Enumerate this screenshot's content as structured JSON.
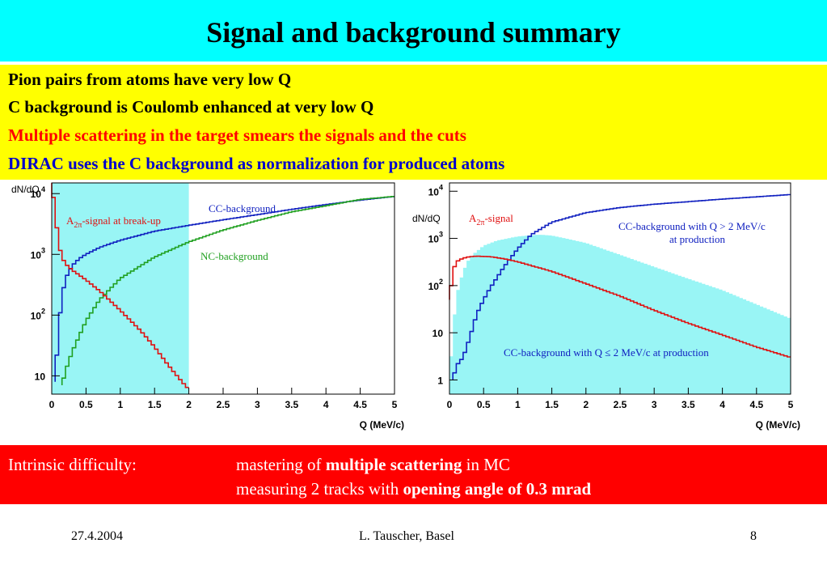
{
  "title": "Signal and background summary",
  "bullets": [
    {
      "text": "Pion pairs from atoms have very low Q",
      "color": "#000000"
    },
    {
      "text": "C background is Coulomb enhanced at very low Q",
      "color": "#000000"
    },
    {
      "text": "Multiple scattering in the target smears the signals and the cuts",
      "color": "#ff0000"
    },
    {
      "text": "DIRAC uses the C background as normalization for produced atoms",
      "color": "#0000cc"
    }
  ],
  "chart_data": [
    {
      "type": "line",
      "ylabel": "dN/dQ",
      "xlabel": "Q (MeV/c)",
      "y_scale": "log",
      "xlim": [
        0,
        5
      ],
      "ylim": [
        5,
        15000
      ],
      "x_ticks": [
        "0",
        "0.5",
        "1",
        "1.5",
        "2",
        "2.5",
        "3",
        "3.5",
        "4",
        "4.5",
        "5"
      ],
      "y_ticks": [
        {
          "base": "10",
          "exp": "",
          "value": 10
        },
        {
          "base": "10",
          "exp": "2",
          "value": 100
        },
        {
          "base": "10",
          "exp": "3",
          "value": 1000
        },
        {
          "base": "10",
          "exp": "4",
          "value": 10000
        }
      ],
      "shaded_region": {
        "x": [
          0,
          2
        ],
        "color": "#99f5f5",
        "description": "signal region"
      },
      "series": [
        {
          "name": "CC-background",
          "color": "#1020c0",
          "x": [
            0.05,
            0.1,
            0.15,
            0.2,
            0.3,
            0.4,
            0.5,
            0.7,
            1.0,
            1.5,
            2.0,
            2.5,
            3.0,
            3.5,
            4.0,
            4.5,
            5.0
          ],
          "y": [
            8,
            60,
            200,
            400,
            650,
            850,
            1000,
            1300,
            1700,
            2400,
            3000,
            3700,
            4500,
            5500,
            6600,
            7800,
            9000
          ]
        },
        {
          "name": "NC-background",
          "color": "#20a020",
          "x": [
            0.15,
            0.2,
            0.3,
            0.4,
            0.5,
            0.7,
            1.0,
            1.5,
            2.0,
            2.5,
            3.0,
            3.5,
            4.0,
            4.5,
            5.0
          ],
          "y": [
            7,
            12,
            25,
            45,
            80,
            180,
            400,
            900,
            1600,
            2500,
            3600,
            5000,
            6300,
            8000,
            9000
          ]
        },
        {
          "name": "A_2π-signal at break-up",
          "color": "#e01010",
          "x": [
            0.0,
            0.05,
            0.1,
            0.15,
            0.2,
            0.3,
            0.5,
            0.7,
            1.0,
            1.3,
            1.5,
            1.7,
            1.9,
            2.0
          ],
          "y": [
            15000,
            5000,
            1500,
            900,
            700,
            550,
            380,
            250,
            120,
            55,
            30,
            15,
            8,
            6
          ]
        }
      ],
      "labels": [
        {
          "text": "CC-background",
          "color": "#1020c0"
        },
        {
          "text": "NC-background",
          "color": "#20a020"
        },
        {
          "base": "A",
          "sub": "2π",
          "rest": "-signal at break-up",
          "color": "#e01010"
        }
      ]
    },
    {
      "type": "line",
      "ylabel": "dN/dQ",
      "xlabel": "Q (MeV/c)",
      "y_scale": "log",
      "xlim": [
        0,
        5
      ],
      "ylim": [
        0.5,
        15000
      ],
      "x_ticks": [
        "0",
        "0.5",
        "1",
        "1.5",
        "2",
        "2.5",
        "3",
        "3.5",
        "4",
        "4.5",
        "5"
      ],
      "y_ticks": [
        {
          "base": "1",
          "exp": "",
          "value": 1
        },
        {
          "base": "10",
          "exp": "",
          "value": 10
        },
        {
          "base": "10",
          "exp": "2",
          "value": 100
        },
        {
          "base": "10",
          "exp": "3",
          "value": 1000
        },
        {
          "base": "10",
          "exp": "4",
          "value": 10000
        }
      ],
      "series": [
        {
          "name": "CC-background with Q ≤ 2 MeV/c at production",
          "color": "#99f5f5",
          "style": "filled-histogram",
          "x": [
            0.0,
            0.05,
            0.1,
            0.2,
            0.3,
            0.5,
            0.7,
            1.0,
            1.3,
            1.5,
            1.7,
            2.0,
            2.5,
            3.0,
            3.5,
            4.0,
            4.5,
            5.0
          ],
          "y": [
            1,
            10,
            60,
            200,
            400,
            700,
            900,
            1100,
            1200,
            1150,
            1000,
            800,
            450,
            250,
            140,
            80,
            40,
            20
          ]
        },
        {
          "name": "CC-background with Q > 2 MeV/c at production",
          "color": "#1020c0",
          "x": [
            0.05,
            0.1,
            0.2,
            0.3,
            0.4,
            0.5,
            0.6,
            0.7,
            0.8,
            1.0,
            1.2,
            1.5,
            2.0,
            2.5,
            3.0,
            3.5,
            4.0,
            4.5,
            5.0
          ],
          "y": [
            1,
            2,
            3,
            8,
            25,
            50,
            90,
            150,
            250,
            600,
            1200,
            2200,
            3500,
            4500,
            5300,
            6000,
            6800,
            7600,
            8500
          ]
        },
        {
          "name": "A_2π-signal",
          "color": "#e01010",
          "x": [
            0.0,
            0.05,
            0.1,
            0.2,
            0.3,
            0.4,
            0.6,
            0.8,
            1.0,
            1.5,
            2.0,
            2.5,
            3.0,
            3.5,
            4.0,
            4.5,
            5.0
          ],
          "y": [
            50,
            200,
            320,
            380,
            410,
            420,
            410,
            370,
            320,
            200,
            110,
            60,
            30,
            16,
            9,
            5,
            3
          ]
        }
      ],
      "labels": [
        {
          "text": "CC-background with Q > 2 MeV/c",
          "color": "#1020c0"
        },
        {
          "text": "at production",
          "color": "#1020c0"
        },
        {
          "text": "CC-background with Q ≤ 2 MeV/c at production",
          "color": "#1020c0"
        },
        {
          "base": "A",
          "sub": "2π",
          "rest": "-signal",
          "color": "#e01010"
        }
      ]
    }
  ],
  "box": {
    "heading": "Intrinsic difficulty:",
    "line1_pre": "mastering of ",
    "line1_bold": "multiple scattering",
    "line1_post": " in MC",
    "line2_pre": "measuring 2 tracks with ",
    "line2_bold": "opening angle of  0.3 mrad"
  },
  "footer": {
    "date": "27.4.2004",
    "author": "L. Tauscher, Basel",
    "page": "8"
  }
}
